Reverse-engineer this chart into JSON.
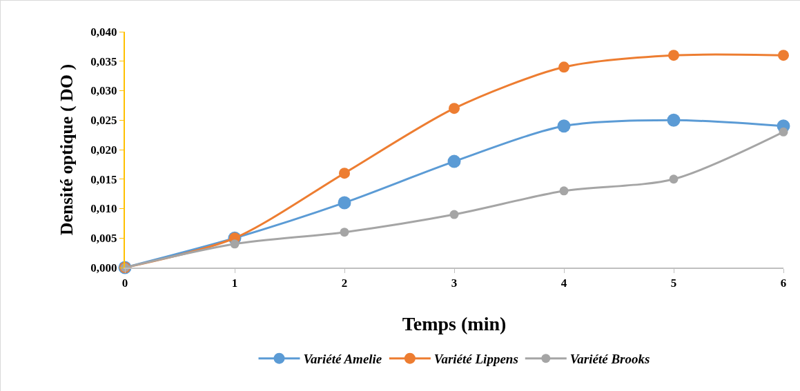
{
  "chart_data": {
    "type": "line",
    "xlabel": "Temps (min)",
    "ylabel": "Densité optique ( DO )",
    "x": [
      0,
      1,
      2,
      3,
      4,
      5,
      6
    ],
    "series": [
      {
        "name": "Variété Amelie",
        "color": "#5b9bd5",
        "values": [
          0,
          0.005,
          0.011,
          0.018,
          0.024,
          0.025,
          0.024
        ]
      },
      {
        "name": "Variété Lippens",
        "color": "#ed7d31",
        "values": [
          0,
          0.005,
          0.016,
          0.027,
          0.034,
          0.036,
          0.036
        ]
      },
      {
        "name": "Variété Brooks",
        "color": "#a5a5a5",
        "values": [
          0,
          0.004,
          0.006,
          0.009,
          0.013,
          0.015,
          0.023
        ]
      }
    ],
    "xlim": [
      0,
      6
    ],
    "xticks": [
      0,
      1,
      2,
      3,
      4,
      5,
      6
    ],
    "ylim": [
      0,
      0.04
    ],
    "yticks": [
      {
        "value": 0,
        "label": "0,000"
      },
      {
        "value": 0.005,
        "label": "0,005"
      },
      {
        "value": 0.01,
        "label": "0,010"
      },
      {
        "value": 0.015,
        "label": "0,015"
      },
      {
        "value": 0.02,
        "label": "0,020"
      },
      {
        "value": 0.025,
        "label": "0,025"
      },
      {
        "value": 0.03,
        "label": "0,030"
      },
      {
        "value": 0.035,
        "label": "0,035"
      },
      {
        "value": 0.04,
        "label": "0,040"
      }
    ],
    "grid": false,
    "legend": "bottom",
    "marker": "circle",
    "line_style": "solid"
  }
}
